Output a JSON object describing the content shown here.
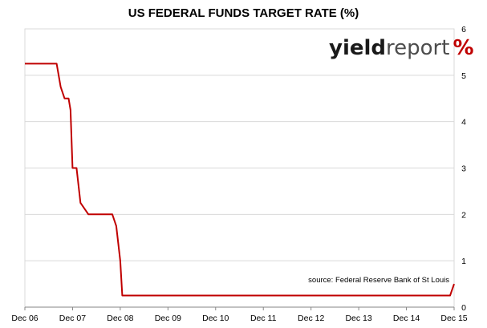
{
  "chart_data": {
    "type": "line",
    "title": "US FEDERAL FUNDS TARGET RATE (%)",
    "xlabel": "",
    "ylabel": "",
    "x_tick_labels": [
      "Dec 06",
      "Dec 07",
      "Dec 08",
      "Dec 09",
      "Dec 10",
      "Dec 11",
      "Dec 12",
      "Dec 13",
      "Dec 14",
      "Dec 15"
    ],
    "x_range": [
      2006.917,
      2015.917
    ],
    "ylim": [
      0,
      6
    ],
    "y_ticks": [
      0,
      1,
      2,
      3,
      4,
      5,
      6
    ],
    "y_axis_side": "right",
    "grid": "horizontal",
    "series": [
      {
        "color": "#c00000",
        "x": [
          2006.917,
          2007.583,
          2007.667,
          2007.75,
          2007.833,
          2007.875,
          2007.917,
          2008.0,
          2008.083,
          2008.25,
          2008.333,
          2008.75,
          2008.833,
          2008.917,
          2008.96,
          2015.833,
          2015.917
        ],
        "y": [
          5.25,
          5.25,
          4.75,
          4.5,
          4.5,
          4.25,
          3.0,
          3.0,
          2.25,
          2.0,
          2.0,
          2.0,
          1.75,
          1.0,
          0.25,
          0.25,
          0.5
        ]
      }
    ],
    "annotations": [
      "source: Federal Reserve Bank of St Louis"
    ]
  },
  "logo": {
    "text_main": "yieldreport",
    "text_symbol": "%",
    "color_main": "#1a1a1a",
    "color_accent": "#3a9a3a",
    "color_symbol": "#c00000"
  },
  "colors": {
    "grid": "#d9d9d9",
    "axis": "#868686",
    "line": "#c00000"
  }
}
